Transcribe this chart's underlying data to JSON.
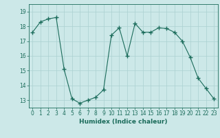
{
  "x": [
    0,
    1,
    2,
    3,
    4,
    5,
    6,
    7,
    8,
    9,
    10,
    11,
    12,
    13,
    14,
    15,
    16,
    17,
    18,
    19,
    20,
    21,
    22,
    23
  ],
  "y": [
    17.6,
    18.3,
    18.5,
    18.6,
    15.1,
    13.1,
    12.8,
    13.0,
    13.2,
    13.7,
    17.4,
    17.9,
    16.0,
    18.2,
    17.6,
    17.6,
    17.9,
    17.85,
    17.6,
    17.0,
    15.9,
    14.5,
    13.8,
    13.1
  ],
  "line_color": "#1a6b5a",
  "marker": "+",
  "marker_size": 4,
  "xlabel": "Humidex (Indice chaleur)",
  "xlim": [
    -0.5,
    23.5
  ],
  "ylim": [
    12.5,
    19.5
  ],
  "yticks": [
    13,
    14,
    15,
    16,
    17,
    18,
    19
  ],
  "xticks": [
    0,
    1,
    2,
    3,
    4,
    5,
    6,
    7,
    8,
    9,
    10,
    11,
    12,
    13,
    14,
    15,
    16,
    17,
    18,
    19,
    20,
    21,
    22,
    23
  ],
  "bg_color": "#cce8e8",
  "grid_color": "#aad0d0",
  "title": ""
}
